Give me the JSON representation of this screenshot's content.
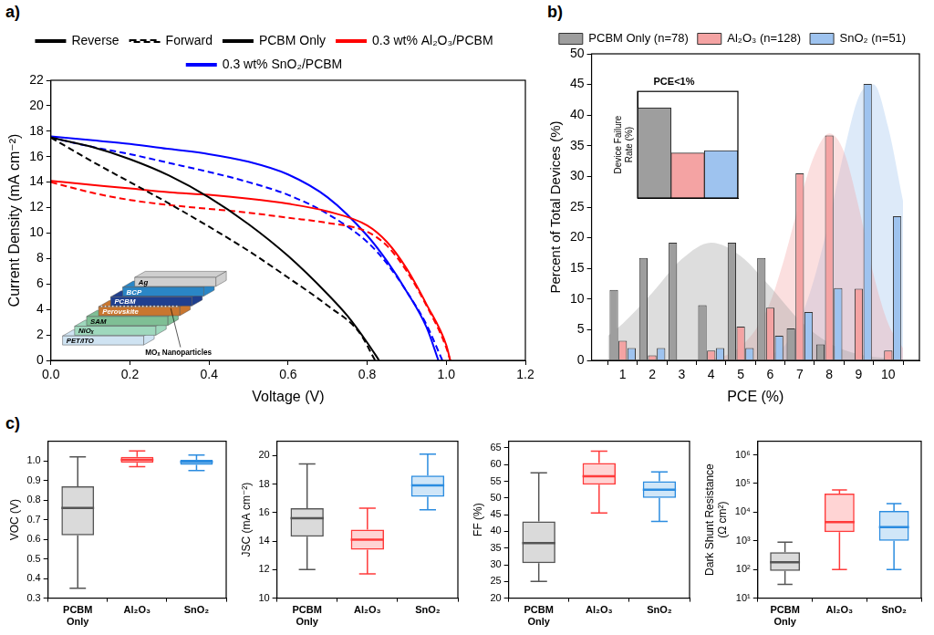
{
  "chart_data": [
    {
      "panel": "a)",
      "type": "line",
      "x_label": "Voltage (V)",
      "y_label": "Current Density (mA cm⁻²)",
      "xlim": [
        0,
        1.2
      ],
      "xticks": [
        {
          "value": 0,
          "label": "0.0"
        },
        0.2,
        0.4,
        0.6,
        0.8,
        {
          "value": 1,
          "label": "1.0"
        },
        1.2
      ],
      "ylim": [
        0,
        22
      ],
      "yticks": [
        0,
        2,
        4,
        6,
        8,
        10,
        12,
        14,
        16,
        18,
        20,
        22
      ],
      "grid": false,
      "legend": "top",
      "line_style_names": {
        "solid": "Reverse",
        "dashed": "Forward"
      },
      "series": [
        {
          "name": "PCBM Only",
          "color": "#000000",
          "line_style": "solid",
          "x": [
            0,
            0.1,
            0.2,
            0.3,
            0.4,
            0.5,
            0.6,
            0.7,
            0.75,
            0.8,
            0.83
          ],
          "values": [
            17.5,
            16.8,
            15.8,
            14.5,
            12.8,
            10.7,
            8.2,
            5.2,
            3.5,
            1.4,
            0
          ]
        },
        {
          "name": "PCBM Only",
          "color": "#000000",
          "line_style": "dashed",
          "x": [
            0,
            0.1,
            0.2,
            0.3,
            0.4,
            0.5,
            0.6,
            0.7,
            0.78,
            0.82
          ],
          "values": [
            17.5,
            15.7,
            14.0,
            12.3,
            10.5,
            8.6,
            6.5,
            4.3,
            2.2,
            0
          ]
        },
        {
          "name": "0.3 wt% Al₂O₃/PCBM",
          "color": "#ff0000",
          "line_style": "solid",
          "x": [
            0,
            0.1,
            0.2,
            0.3,
            0.4,
            0.5,
            0.6,
            0.7,
            0.8,
            0.85,
            0.9,
            0.95,
            1.0,
            1.01
          ],
          "values": [
            14.1,
            13.8,
            13.5,
            13.2,
            13.0,
            12.7,
            12.3,
            11.7,
            10.6,
            9.3,
            7.2,
            4.4,
            1.2,
            0
          ]
        },
        {
          "name": "0.3 wt% Al₂O₃/PCBM",
          "color": "#ff0000",
          "line_style": "dashed",
          "x": [
            0,
            0.1,
            0.2,
            0.3,
            0.4,
            0.5,
            0.6,
            0.7,
            0.8,
            0.85,
            0.9,
            0.95,
            1.0,
            1.01
          ],
          "values": [
            14.0,
            13.2,
            12.6,
            12.2,
            11.9,
            11.6,
            11.2,
            10.8,
            10.1,
            9.0,
            7.0,
            4.3,
            1.0,
            0
          ]
        },
        {
          "name": "0.3 wt% SnO₂/PCBM",
          "color": "#0000ff",
          "line_style": "solid",
          "x": [
            0,
            0.1,
            0.2,
            0.3,
            0.4,
            0.5,
            0.6,
            0.7,
            0.8,
            0.85,
            0.9,
            0.95,
            0.98
          ],
          "values": [
            17.6,
            17.3,
            17.0,
            16.6,
            16.2,
            15.6,
            14.6,
            12.8,
            9.8,
            7.8,
            5.4,
            2.6,
            0
          ]
        },
        {
          "name": "0.3 wt% SnO₂/PCBM",
          "color": "#0000ff",
          "line_style": "dashed",
          "x": [
            0,
            0.1,
            0.2,
            0.3,
            0.4,
            0.5,
            0.6,
            0.7,
            0.8,
            0.85,
            0.9,
            0.95,
            0.99
          ],
          "values": [
            17.5,
            16.8,
            16.2,
            15.5,
            14.8,
            14.0,
            13.0,
            11.5,
            9.3,
            7.6,
            5.4,
            2.8,
            0
          ]
        }
      ],
      "inset": {
        "layers": [
          "PET/ITO",
          "NiOₓ",
          "SAM",
          "Perovskite",
          "PCBM",
          "BCP",
          "Ag"
        ],
        "annotation": "MOₓ Nanoparticles"
      }
    },
    {
      "panel": "b)",
      "type": "bar",
      "x_label": "PCE (%)",
      "y_label": "Percent of Total Devices (%)",
      "x": [
        1,
        2,
        3,
        4,
        5,
        6,
        7,
        8,
        9,
        10
      ],
      "xlim": [
        0.5,
        10.5
      ],
      "xticks": [
        1,
        2,
        3,
        4,
        5,
        6,
        7,
        8,
        9,
        10
      ],
      "ylim": [
        0,
        50
      ],
      "yticks": [
        0,
        5,
        10,
        15,
        20,
        25,
        30,
        35,
        40,
        45,
        50
      ],
      "grid": false,
      "legend": "top",
      "series": [
        {
          "name": "PCBM Only (n=78)",
          "color": "#9e9e9e",
          "values": [
            11.5,
            16.7,
            19.2,
            9.0,
            19.2,
            16.7,
            5.2,
            2.6,
            0,
            0
          ]
        },
        {
          "name": "Al₂O₃ (n=128)",
          "color": "#f4a3a3",
          "values": [
            3.2,
            0.8,
            0,
            1.6,
            5.5,
            8.6,
            30.5,
            36.7,
            11.7,
            1.6
          ]
        },
        {
          "name": "SnO₂ (n=51)",
          "color": "#9ec3ef",
          "values": [
            2.0,
            2.0,
            0,
            2.0,
            2.0,
            4.0,
            7.9,
            11.8,
            45.1,
            23.5
          ]
        },
        {
          "name": "PCBM Only (n=78)",
          "type": "line",
          "color": "#9e9e9e",
          "x": [
            0.5,
            1,
            2,
            3,
            4,
            5,
            6,
            7,
            8,
            9,
            10,
            10.5
          ],
          "values": [
            4,
            6,
            11,
            16.5,
            19.2,
            17,
            12,
            6.5,
            2.8,
            1,
            0.3,
            0.1
          ]
        },
        {
          "name": "Al₂O₃ (n=128)",
          "type": "line",
          "color": "#f4a3a3",
          "x": [
            4,
            4.5,
            5,
            5.5,
            6,
            6.5,
            7,
            7.5,
            8,
            8.5,
            9,
            9.5,
            10,
            10.5
          ],
          "values": [
            0.3,
            0.8,
            2.3,
            5,
            9.5,
            17,
            26,
            33.5,
            37,
            34,
            25,
            14,
            6,
            2
          ]
        },
        {
          "name": "SnO₂ (n=51)",
          "type": "line",
          "color": "#9ec3ef",
          "x": [
            6,
            6.5,
            7,
            7.5,
            8,
            8.5,
            9,
            9.5,
            10,
            10.5
          ],
          "values": [
            0.8,
            2.5,
            6.5,
            13.5,
            23,
            34,
            43,
            45,
            38,
            26
          ]
        }
      ],
      "inset": {
        "type": "bar",
        "title": "PCE<1%",
        "y_label": "Device Failure Rate (%)",
        "categories": [
          null,
          null,
          null
        ],
        "values": [
          38,
          19,
          20
        ],
        "colors": [
          "#9e9e9e",
          "#f4a3a3",
          "#9ec3ef"
        ],
        "ylim": [
          0,
          45
        ],
        "tick_labels": false
      }
    },
    {
      "panel": "c)",
      "type": "box",
      "y_label": "VOC (V)",
      "categories": [
        "PCBM Only",
        "Al₂O₃",
        "SnO₂"
      ],
      "colors": [
        "#555555",
        "#ff3b3b",
        "#2b8ce0"
      ],
      "ylim": [
        0.3,
        1.1
      ],
      "yticks": [
        0.3,
        0.4,
        0.5,
        0.6,
        0.7,
        0.8,
        0.9,
        {
          "value": 1,
          "label": "1.0"
        }
      ],
      "grid": false,
      "boxes": [
        {
          "low": 0.35,
          "q1": 0.62,
          "median": 0.76,
          "q3": 0.87,
          "high": 1.02
        },
        {
          "low": 0.97,
          "q1": 0.99,
          "median": 1.005,
          "q3": 1.02,
          "high": 1.05
        },
        {
          "low": 0.95,
          "q1": 0.98,
          "median": 0.995,
          "q3": 1.005,
          "high": 1.03
        }
      ]
    },
    {
      "type": "box",
      "y_label": "JSC (mA cm⁻²)",
      "categories": [
        "PCBM Only",
        "Al₂O₃",
        "SnO₂"
      ],
      "colors": [
        "#555555",
        "#ff3b3b",
        "#2b8ce0"
      ],
      "ylim": [
        10,
        21
      ],
      "yticks": [
        10,
        12,
        14,
        16,
        18,
        20
      ],
      "grid": false,
      "boxes": [
        {
          "low": 12.0,
          "q1": 14.3,
          "median": 15.6,
          "q3": 16.3,
          "high": 19.4
        },
        {
          "low": 11.7,
          "q1": 13.4,
          "median": 14.1,
          "q3": 14.8,
          "high": 16.3
        },
        {
          "low": 16.2,
          "q1": 17.1,
          "median": 17.9,
          "q3": 18.6,
          "high": 20.1
        }
      ]
    },
    {
      "type": "box",
      "y_label": "FF (%)",
      "categories": [
        "PCBM Only",
        "Al₂O₃",
        "SnO₂"
      ],
      "colors": [
        "#555555",
        "#ff3b3b",
        "#2b8ce0"
      ],
      "ylim": [
        20,
        67
      ],
      "yticks": [
        20,
        25,
        30,
        35,
        40,
        45,
        50,
        55,
        60,
        65
      ],
      "grid": false,
      "boxes": [
        {
          "low": 25,
          "q1": 30.5,
          "median": 36.5,
          "q3": 43,
          "high": 57.5
        },
        {
          "low": 45.5,
          "q1": 54,
          "median": 56.5,
          "q3": 60.5,
          "high": 64
        },
        {
          "low": 43,
          "q1": 50,
          "median": 52.5,
          "q3": 55,
          "high": 57.8
        }
      ]
    },
    {
      "type": "box",
      "y_label": "Dark Shunt Resistance (Ω cm²)",
      "categories": [
        "PCBM Only",
        "Al₂O₃",
        "SnO₂"
      ],
      "colors": [
        "#555555",
        "#ff3b3b",
        "#2b8ce0"
      ],
      "log": "y",
      "ylim": [
        10,
        3000000
      ],
      "yticks": [
        {
          "value": 10,
          "label": "10¹"
        },
        {
          "value": 100,
          "label": "10²"
        },
        {
          "value": 1000,
          "label": "10³"
        },
        {
          "value": 10000,
          "label": "10⁴"
        },
        {
          "value": 100000,
          "label": "10⁵"
        },
        {
          "value": 1000000,
          "label": "10⁶"
        }
      ],
      "grid": false,
      "boxes": [
        {
          "low": 30,
          "q1": 90,
          "median": 180,
          "q3": 400,
          "high": 900
        },
        {
          "low": 100,
          "q1": 2000,
          "median": 4500,
          "q3": 45000,
          "high": 60000
        },
        {
          "low": 100,
          "q1": 1000,
          "median": 3000,
          "q3": 11000,
          "high": 20000
        }
      ]
    }
  ]
}
